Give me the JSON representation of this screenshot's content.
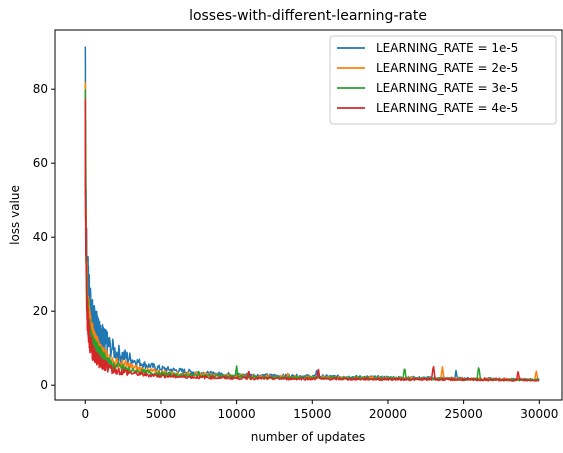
{
  "chart_data": {
    "type": "line",
    "title": "losses-with-different-learning-rate",
    "xlabel": "number of updates",
    "ylabel": "loss value",
    "xlim": [
      -2000,
      31500
    ],
    "ylim": [
      -4,
      96
    ],
    "xticks": [
      0,
      5000,
      10000,
      15000,
      20000,
      25000,
      30000
    ],
    "xtick_labels": [
      "0",
      "5000",
      "10000",
      "15000",
      "20000",
      "25000",
      "30000"
    ],
    "yticks": [
      0,
      20,
      40,
      60,
      80
    ],
    "ytick_labels": [
      "0",
      "20",
      "40",
      "60",
      "80"
    ],
    "grid": false,
    "legend_position": "top-right",
    "series": [
      {
        "name": "LEARNING_RATE = 1e-5",
        "color": "#1f77b4",
        "x": [
          0,
          50,
          100,
          200,
          300,
          500,
          700,
          1000,
          1500,
          2000,
          3000,
          4000,
          5000,
          6000,
          8000,
          10000,
          12000,
          15000,
          20000,
          25000,
          30000
        ],
        "values": [
          92,
          45,
          34,
          26,
          22,
          18,
          16,
          14,
          11,
          9,
          7,
          5.5,
          4.5,
          4,
          3.2,
          2.8,
          2.6,
          2.4,
          2.1,
          1.8,
          1.5
        ],
        "spikes": [
          [
            15300,
            4.5
          ],
          [
            24500,
            4.0
          ]
        ]
      },
      {
        "name": "LEARNING_RATE = 2e-5",
        "color": "#ff7f0e",
        "x": [
          0,
          50,
          100,
          200,
          300,
          500,
          700,
          1000,
          1500,
          2000,
          3000,
          4000,
          5000,
          6000,
          8000,
          10000,
          12000,
          15000,
          20000,
          25000,
          30000
        ],
        "values": [
          70,
          40,
          28,
          20,
          16,
          13,
          11,
          9,
          7,
          6,
          5,
          4,
          3.5,
          3.1,
          2.8,
          2.5,
          2.3,
          2.1,
          1.9,
          1.7,
          1.5
        ],
        "spikes": [
          [
            13400,
            3.5
          ],
          [
            23600,
            5.0
          ],
          [
            29800,
            4.0
          ]
        ]
      },
      {
        "name": "LEARNING_RATE = 3e-5",
        "color": "#2ca02c",
        "x": [
          0,
          50,
          100,
          200,
          300,
          500,
          700,
          1000,
          1500,
          2000,
          3000,
          4000,
          5000,
          6000,
          8000,
          10000,
          12000,
          15000,
          20000,
          25000,
          30000
        ],
        "values": [
          73,
          38,
          25,
          18,
          14,
          11,
          9.5,
          8,
          6,
          5,
          4,
          3.5,
          3,
          2.8,
          2.5,
          2.3,
          2.1,
          2.0,
          1.8,
          1.6,
          1.4
        ],
        "spikes": [
          [
            7500,
            4.0
          ],
          [
            10000,
            5.5
          ],
          [
            21100,
            5.0
          ],
          [
            26000,
            5.2
          ]
        ]
      },
      {
        "name": "LEARNING_RATE = 4e-5",
        "color": "#d62728",
        "x": [
          0,
          50,
          100,
          200,
          300,
          500,
          700,
          1000,
          1500,
          2000,
          3000,
          4000,
          5000,
          6000,
          8000,
          10000,
          12000,
          15000,
          20000,
          25000,
          30000
        ],
        "values": [
          68,
          35,
          22,
          16,
          12,
          9,
          7.5,
          6,
          4.8,
          4,
          3.3,
          2.8,
          2.5,
          2.3,
          2.1,
          1.9,
          1.8,
          1.7,
          1.6,
          1.5,
          1.3
        ],
        "spikes": [
          [
            10800,
            4.2
          ],
          [
            15400,
            4.5
          ],
          [
            23000,
            5.5
          ],
          [
            28600,
            3.8
          ]
        ]
      }
    ]
  }
}
